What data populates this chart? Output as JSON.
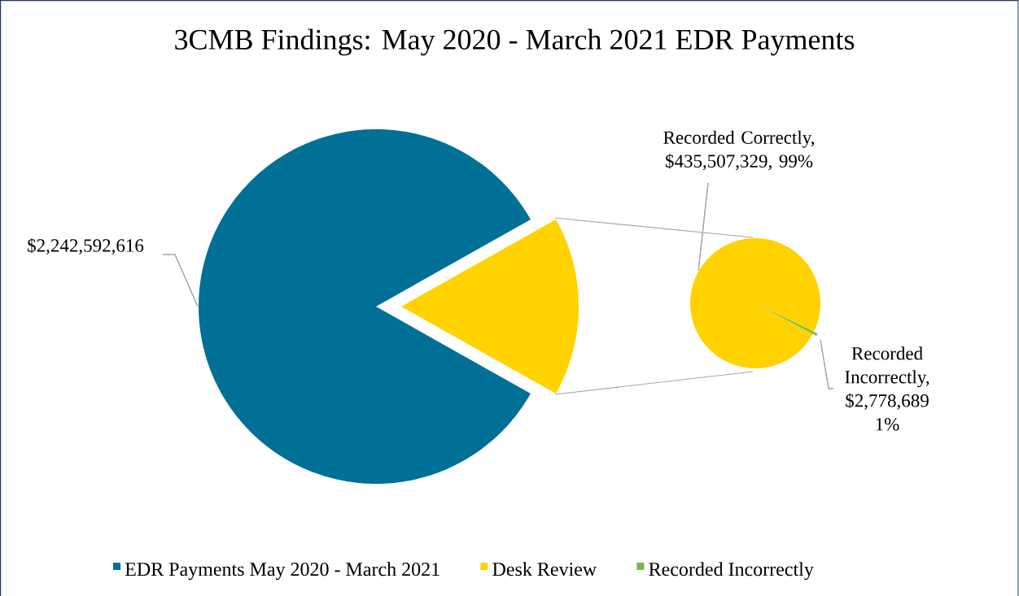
{
  "chart_data": [
    {
      "type": "pie",
      "title": "3CMB Findings: May 2020 - March 2021 EDR Payments",
      "categories": [
        "EDR Payments May 2020 - March 2021",
        "Desk Review"
      ],
      "values": [
        2242592616,
        438286018
      ],
      "colors": [
        "#007096",
        "#ffd200"
      ],
      "value_labels": [
        "$2,242,592,616",
        null
      ],
      "legend": "bottom"
    },
    {
      "type": "pie",
      "categories": [
        null,
        "Recorded Incorrectly"
      ],
      "values": [
        435507329,
        2778689
      ],
      "colors": [
        "#ffd200",
        "#7ab648"
      ],
      "value_labels": [
        "Recorded Correctly, $435,507,329, 99%",
        "Recorded Incorrectly, $2,778,689 1%"
      ],
      "legend": "bottom"
    }
  ]
}
